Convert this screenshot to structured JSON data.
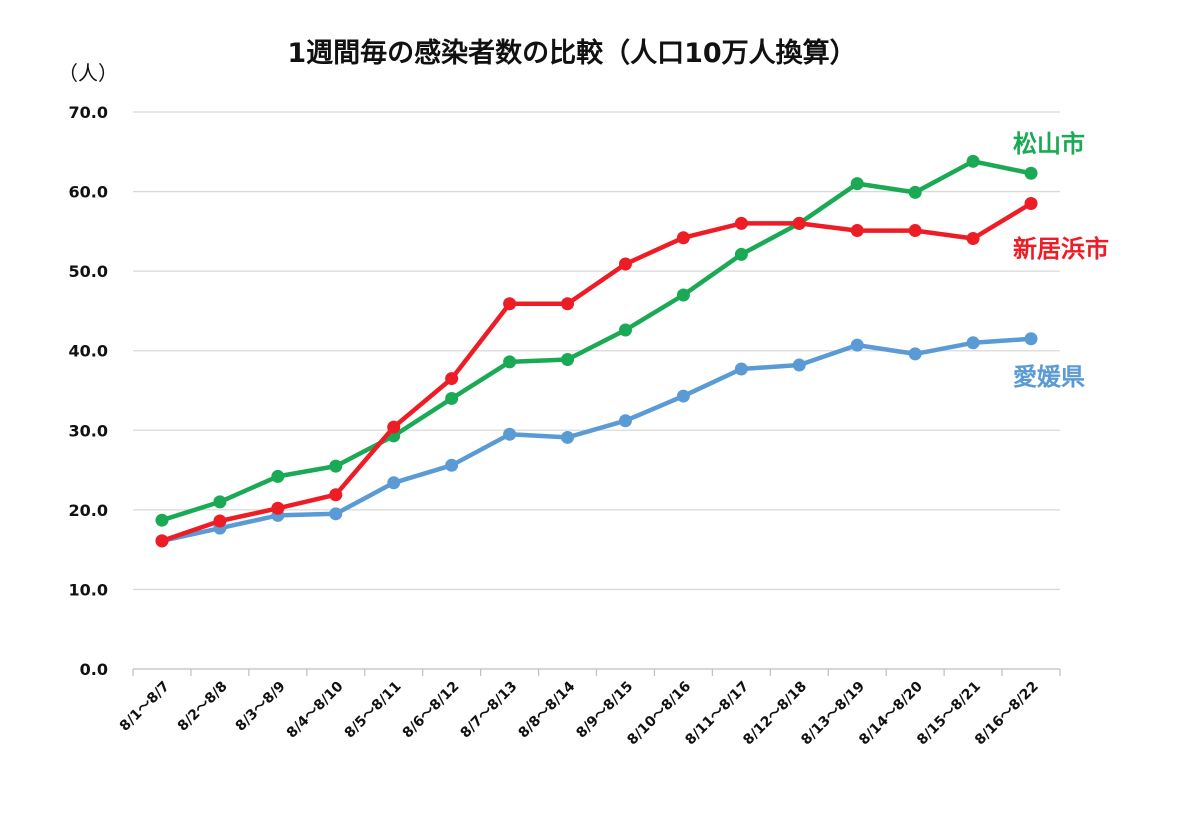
{
  "chart_data": {
    "type": "line",
    "title": "1週間毎の感染者数の比較（人口10万人換算）",
    "ylabel": "（人）",
    "xlabel": "",
    "ylim": [
      0,
      70
    ],
    "yticks": [
      "0.0",
      "10.0",
      "20.0",
      "30.0",
      "40.0",
      "50.0",
      "60.0",
      "70.0"
    ],
    "grid": true,
    "categories": [
      "8/1～8/7",
      "8/2～8/8",
      "8/3～8/9",
      "8/4～8/10",
      "8/5～8/11",
      "8/6～8/12",
      "8/7～8/13",
      "8/8～8/14",
      "8/9～8/15",
      "8/10～8/16",
      "8/11～8/17",
      "8/12～8/18",
      "8/13～8/19",
      "8/14～8/20",
      "8/15～8/21",
      "8/16～8/22"
    ],
    "series": [
      {
        "name": "松山市",
        "color": "#1aaa55",
        "values": [
          18.7,
          21.0,
          24.2,
          25.5,
          29.3,
          34.0,
          38.6,
          38.9,
          42.6,
          47.0,
          52.1,
          56.0,
          61.0,
          59.9,
          63.8,
          62.3
        ]
      },
      {
        "name": "新居浜市",
        "color": "#ee1c24",
        "values": [
          16.1,
          18.6,
          20.2,
          21.9,
          30.4,
          36.5,
          45.9,
          45.9,
          50.9,
          54.2,
          56.0,
          56.0,
          55.1,
          55.1,
          54.1,
          58.5
        ]
      },
      {
        "name": "愛媛県",
        "color": "#5b9bd5",
        "values": [
          16.1,
          17.7,
          19.3,
          19.5,
          23.4,
          25.6,
          29.5,
          29.1,
          31.2,
          34.3,
          37.7,
          38.2,
          40.7,
          39.6,
          41.0,
          41.5
        ]
      }
    ]
  }
}
